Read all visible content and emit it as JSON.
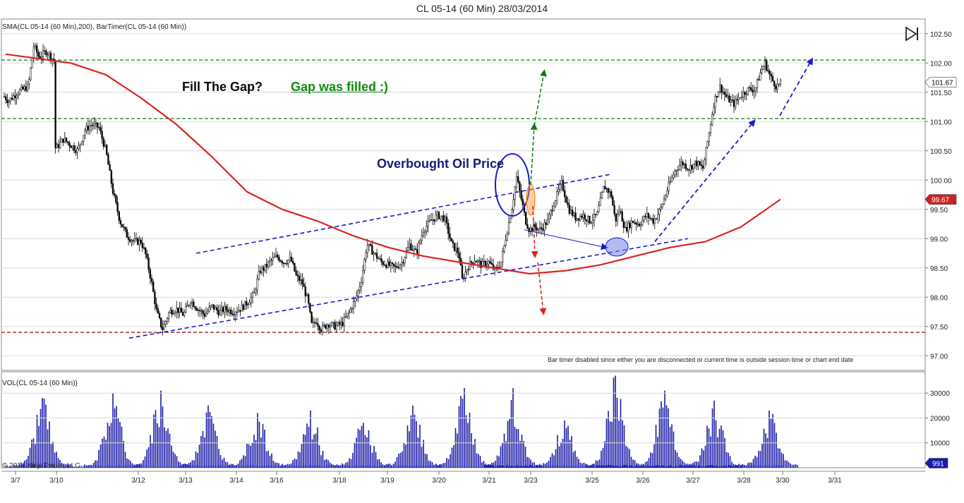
{
  "title": "CL 05-14 (60 Min)  28/03/2014",
  "indicator_label": "SMA(CL 05-14 (60 Min),200), BarTimer(CL 05-14 (60 Min))",
  "volume_label": "VOL(CL 05-14 (60 Min))",
  "bar_timer_note": "Bar timer disabled since either you are disconnected or current time is outside session time or chart end date",
  "copyright": "© 2014 NinjaTrader, LLC",
  "annotations": {
    "fill_gap": "Fill The Gap?",
    "gap_filled": "Gap was filled :)",
    "overbought": "Overbought Oil Price"
  },
  "colors": {
    "sma": "#dd2222",
    "candle": "#000000",
    "volume": "#1a1aa8",
    "green_line": "#1a7a1a",
    "red_line": "#a01818",
    "trend": "#1a1acc",
    "annotation_dark": "#0a0a0a",
    "annotation_green": "#138a13",
    "annotation_blue": "#1a1a7a"
  },
  "chart_data": [
    {
      "type": "candlestick",
      "ylim": [
        96.75,
        102.75
      ],
      "y_ticks": [
        "102.50",
        "102.00",
        "101.50",
        "101.00",
        "100.50",
        "100.00",
        "99.50",
        "99.00",
        "98.50",
        "98.00",
        "97.50",
        "97.00"
      ],
      "x_ticks": [
        "3/7",
        "3/10",
        "3/12",
        "3/13",
        "3/14",
        "3/16",
        "3/18",
        "3/19",
        "3/20",
        "3/21",
        "3/23",
        "3/25",
        "3/26",
        "3/27",
        "3/28",
        "3/30",
        "3/31"
      ],
      "close_path": [
        [
          0,
          101.5
        ],
        [
          12,
          101.35
        ],
        [
          25,
          101.5
        ],
        [
          40,
          101.6
        ],
        [
          48,
          102.3
        ],
        [
          55,
          102.1
        ],
        [
          66,
          102.2
        ],
        [
          76,
          102.05
        ],
        [
          80,
          100.55
        ],
        [
          90,
          100.7
        ],
        [
          100,
          100.6
        ],
        [
          110,
          100.5
        ],
        [
          120,
          100.85
        ],
        [
          130,
          100.95
        ],
        [
          140,
          100.9
        ],
        [
          150,
          100.5
        ],
        [
          160,
          99.8
        ],
        [
          170,
          99.3
        ],
        [
          180,
          99.05
        ],
        [
          190,
          98.95
        ],
        [
          200,
          98.95
        ],
        [
          207,
          98.7
        ],
        [
          214,
          98.3
        ],
        [
          222,
          97.75
        ],
        [
          230,
          97.45
        ],
        [
          240,
          97.75
        ],
        [
          250,
          97.8
        ],
        [
          260,
          97.7
        ],
        [
          270,
          97.95
        ],
        [
          280,
          97.8
        ],
        [
          290,
          97.7
        ],
        [
          300,
          97.85
        ],
        [
          310,
          97.75
        ],
        [
          320,
          97.8
        ],
        [
          330,
          97.75
        ],
        [
          340,
          97.8
        ],
        [
          350,
          97.9
        ],
        [
          360,
          98.05
        ],
        [
          368,
          98.45
        ],
        [
          375,
          98.5
        ],
        [
          382,
          98.6
        ],
        [
          392,
          98.7
        ],
        [
          402,
          98.6
        ],
        [
          412,
          98.65
        ],
        [
          420,
          98.35
        ],
        [
          428,
          98.25
        ],
        [
          436,
          97.95
        ],
        [
          442,
          97.5
        ],
        [
          448,
          97.6
        ],
        [
          455,
          97.45
        ],
        [
          465,
          97.55
        ],
        [
          475,
          97.5
        ],
        [
          485,
          97.55
        ],
        [
          495,
          97.75
        ],
        [
          505,
          98.0
        ],
        [
          512,
          98.3
        ],
        [
          520,
          98.9
        ],
        [
          530,
          98.75
        ],
        [
          540,
          98.6
        ],
        [
          550,
          98.55
        ],
        [
          560,
          98.5
        ],
        [
          570,
          98.6
        ],
        [
          580,
          98.9
        ],
        [
          590,
          98.75
        ],
        [
          600,
          99.15
        ],
        [
          610,
          99.3
        ],
        [
          620,
          99.4
        ],
        [
          630,
          99.35
        ],
        [
          640,
          98.9
        ],
        [
          650,
          98.75
        ],
        [
          655,
          98.3
        ],
        [
          662,
          98.5
        ],
        [
          672,
          98.65
        ],
        [
          682,
          98.55
        ],
        [
          692,
          98.6
        ],
        [
          702,
          98.45
        ],
        [
          710,
          98.6
        ],
        [
          718,
          99.1
        ],
        [
          725,
          99.5
        ],
        [
          732,
          100.05
        ],
        [
          740,
          99.6
        ],
        [
          745,
          99.3
        ],
        [
          750,
          99.15
        ],
        [
          757,
          99.2
        ],
        [
          766,
          99.15
        ],
        [
          776,
          99.3
        ],
        [
          786,
          99.65
        ],
        [
          796,
          99.95
        ],
        [
          806,
          99.5
        ],
        [
          816,
          99.35
        ],
        [
          826,
          99.4
        ],
        [
          836,
          99.3
        ],
        [
          846,
          99.4
        ],
        [
          856,
          99.9
        ],
        [
          866,
          99.75
        ],
        [
          872,
          99.3
        ],
        [
          878,
          99.5
        ],
        [
          886,
          99.15
        ],
        [
          896,
          99.3
        ],
        [
          906,
          99.25
        ],
        [
          916,
          99.4
        ],
        [
          926,
          99.3
        ],
        [
          936,
          99.5
        ],
        [
          946,
          99.85
        ],
        [
          956,
          100.15
        ],
        [
          966,
          100.3
        ],
        [
          976,
          100.2
        ],
        [
          986,
          100.3
        ],
        [
          996,
          100.2
        ],
        [
          1004,
          100.75
        ],
        [
          1012,
          101.35
        ],
        [
          1020,
          101.6
        ],
        [
          1030,
          101.4
        ],
        [
          1040,
          101.3
        ],
        [
          1050,
          101.45
        ],
        [
          1060,
          101.55
        ],
        [
          1070,
          101.55
        ],
        [
          1078,
          101.85
        ],
        [
          1084,
          102.0
        ],
        [
          1092,
          101.75
        ],
        [
          1100,
          101.6
        ],
        [
          1108,
          101.67
        ]
      ],
      "sma_path": [
        [
          8,
          102.15
        ],
        [
          100,
          102.0
        ],
        [
          150,
          101.8
        ],
        [
          200,
          101.4
        ],
        [
          250,
          100.95
        ],
        [
          300,
          100.4
        ],
        [
          350,
          99.8
        ],
        [
          400,
          99.5
        ],
        [
          450,
          99.3
        ],
        [
          500,
          99.05
        ],
        [
          550,
          98.85
        ],
        [
          600,
          98.7
        ],
        [
          650,
          98.6
        ],
        [
          700,
          98.5
        ],
        [
          750,
          98.4
        ],
        [
          800,
          98.45
        ],
        [
          850,
          98.55
        ],
        [
          900,
          98.7
        ],
        [
          950,
          98.85
        ],
        [
          1000,
          98.95
        ],
        [
          1050,
          99.2
        ],
        [
          1106,
          99.67
        ]
      ],
      "last_price": "101.67",
      "sma_value": "99.67",
      "horizontal_levels": [
        {
          "value": 102.05,
          "color": "#1a7a1a"
        },
        {
          "value": 101.05,
          "color": "#1a7a1a"
        },
        {
          "value": 97.4,
          "color": "#a01818"
        }
      ],
      "trend_lines": [
        {
          "from": [
            278,
            98.75
          ],
          "to": [
            866,
            100.1
          ]
        },
        {
          "from": [
            183,
            97.3
          ],
          "to": [
            975,
            99.0
          ]
        },
        {
          "from": [
            743,
            99.15
          ],
          "to": [
            858,
            98.85
          ]
        }
      ],
      "trend_arrows": [
        {
          "from": [
            928,
            98.95
          ],
          "to": [
            1068,
            101.0
          ]
        },
        {
          "from": [
            1105,
            101.1
          ],
          "to": [
            1150,
            102.05
          ]
        }
      ]
    },
    {
      "type": "bar",
      "title": "VOL(CL 05-14 (60 Min))",
      "ylim": [
        0,
        38000
      ],
      "y_ticks": [
        "30000",
        "20000",
        "10000"
      ],
      "last_value": "991",
      "clusters": [
        {
          "center": 60,
          "peak": 28000
        },
        {
          "center": 160,
          "peak": 30000
        },
        {
          "center": 228,
          "peak": 31000
        },
        {
          "center": 295,
          "peak": 25000
        },
        {
          "center": 365,
          "peak": 22000
        },
        {
          "center": 440,
          "peak": 23000
        },
        {
          "center": 515,
          "peak": 18000
        },
        {
          "center": 585,
          "peak": 25000
        },
        {
          "center": 658,
          "peak": 32000
        },
        {
          "center": 727,
          "peak": 32000
        },
        {
          "center": 800,
          "peak": 19000
        },
        {
          "center": 872,
          "peak": 37000
        },
        {
          "center": 942,
          "peak": 31000
        },
        {
          "center": 1012,
          "peak": 27000
        },
        {
          "center": 1090,
          "peak": 23000
        }
      ]
    }
  ]
}
